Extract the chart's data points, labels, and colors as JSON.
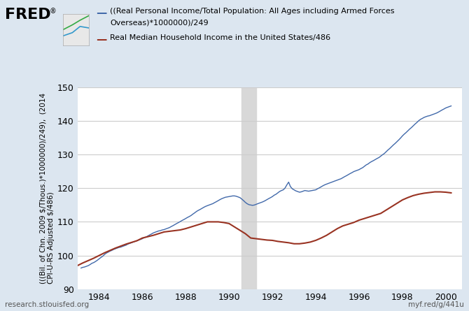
{
  "background_color": "#dce6f0",
  "plot_background": "#ffffff",
  "shaded_region": [
    1990.583,
    1991.25
  ],
  "shaded_color": "#d8d8d8",
  "ylim": [
    90,
    150
  ],
  "xlim": [
    1983.0,
    2000.75
  ],
  "yticks": [
    90,
    100,
    110,
    120,
    130,
    140,
    150
  ],
  "xticks": [
    1984,
    1986,
    1988,
    1990,
    1992,
    1994,
    1996,
    1998,
    2000
  ],
  "ylabel": "(((Bil. of Chn. 2009 $/Thous.)*1000000)/249),  (2014\nCPI-U-RS Adjusted $/486)",
  "blue_label": "((Real Personal Income/Total Population: All Ages including Armed Forces\nOverseas)*1000000)/249",
  "red_label": "Real Median Household Income in the United States/486",
  "fred_text": "FRED®",
  "bottom_left": "research.stlouisfed.org",
  "bottom_right": "myf.red/g/441u",
  "blue_color": "#4169aa",
  "red_color": "#993322",
  "blue_data": [
    [
      1983.17,
      96.3
    ],
    [
      1983.25,
      96.5
    ],
    [
      1983.33,
      96.6
    ],
    [
      1983.42,
      96.8
    ],
    [
      1983.5,
      97.0
    ],
    [
      1983.58,
      97.3
    ],
    [
      1983.67,
      97.7
    ],
    [
      1983.75,
      97.9
    ],
    [
      1983.83,
      98.2
    ],
    [
      1983.92,
      98.6
    ],
    [
      1984.0,
      99.0
    ],
    [
      1984.08,
      99.4
    ],
    [
      1984.17,
      99.8
    ],
    [
      1984.25,
      100.3
    ],
    [
      1984.33,
      100.7
    ],
    [
      1984.42,
      101.0
    ],
    [
      1984.5,
      101.3
    ],
    [
      1984.58,
      101.5
    ],
    [
      1984.67,
      101.8
    ],
    [
      1984.75,
      102.0
    ],
    [
      1984.83,
      102.2
    ],
    [
      1984.92,
      102.4
    ],
    [
      1985.0,
      102.5
    ],
    [
      1985.08,
      102.7
    ],
    [
      1985.17,
      102.9
    ],
    [
      1985.25,
      103.1
    ],
    [
      1985.33,
      103.4
    ],
    [
      1985.42,
      103.6
    ],
    [
      1985.5,
      103.8
    ],
    [
      1985.58,
      104.0
    ],
    [
      1985.67,
      104.2
    ],
    [
      1985.75,
      104.4
    ],
    [
      1985.83,
      104.6
    ],
    [
      1985.92,
      104.8
    ],
    [
      1986.0,
      105.0
    ],
    [
      1986.08,
      105.3
    ],
    [
      1986.17,
      105.5
    ],
    [
      1986.25,
      105.8
    ],
    [
      1986.33,
      106.1
    ],
    [
      1986.42,
      106.4
    ],
    [
      1986.5,
      106.7
    ],
    [
      1986.58,
      106.9
    ],
    [
      1986.67,
      107.1
    ],
    [
      1986.75,
      107.3
    ],
    [
      1986.83,
      107.4
    ],
    [
      1986.92,
      107.6
    ],
    [
      1987.0,
      107.7
    ],
    [
      1987.08,
      107.9
    ],
    [
      1987.17,
      108.1
    ],
    [
      1987.25,
      108.3
    ],
    [
      1987.33,
      108.6
    ],
    [
      1987.42,
      108.9
    ],
    [
      1987.5,
      109.2
    ],
    [
      1987.58,
      109.5
    ],
    [
      1987.67,
      109.8
    ],
    [
      1987.75,
      110.1
    ],
    [
      1987.83,
      110.4
    ],
    [
      1987.92,
      110.7
    ],
    [
      1988.0,
      111.0
    ],
    [
      1988.08,
      111.3
    ],
    [
      1988.17,
      111.6
    ],
    [
      1988.25,
      111.9
    ],
    [
      1988.33,
      112.3
    ],
    [
      1988.42,
      112.7
    ],
    [
      1988.5,
      113.1
    ],
    [
      1988.58,
      113.4
    ],
    [
      1988.67,
      113.7
    ],
    [
      1988.75,
      114.0
    ],
    [
      1988.83,
      114.3
    ],
    [
      1988.92,
      114.6
    ],
    [
      1989.0,
      114.8
    ],
    [
      1989.08,
      115.0
    ],
    [
      1989.17,
      115.2
    ],
    [
      1989.25,
      115.4
    ],
    [
      1989.33,
      115.7
    ],
    [
      1989.42,
      116.0
    ],
    [
      1989.5,
      116.3
    ],
    [
      1989.58,
      116.6
    ],
    [
      1989.67,
      116.9
    ],
    [
      1989.75,
      117.1
    ],
    [
      1989.83,
      117.3
    ],
    [
      1989.92,
      117.4
    ],
    [
      1990.0,
      117.5
    ],
    [
      1990.08,
      117.6
    ],
    [
      1990.17,
      117.7
    ],
    [
      1990.25,
      117.7
    ],
    [
      1990.33,
      117.6
    ],
    [
      1990.42,
      117.4
    ],
    [
      1990.5,
      117.2
    ],
    [
      1990.58,
      116.8
    ],
    [
      1990.67,
      116.3
    ],
    [
      1990.75,
      115.8
    ],
    [
      1990.83,
      115.4
    ],
    [
      1990.92,
      115.1
    ],
    [
      1991.0,
      115.0
    ],
    [
      1991.08,
      114.9
    ],
    [
      1991.17,
      115.0
    ],
    [
      1991.25,
      115.2
    ],
    [
      1991.33,
      115.4
    ],
    [
      1991.42,
      115.6
    ],
    [
      1991.5,
      115.8
    ],
    [
      1991.58,
      116.0
    ],
    [
      1991.67,
      116.3
    ],
    [
      1991.75,
      116.6
    ],
    [
      1991.83,
      116.9
    ],
    [
      1991.92,
      117.2
    ],
    [
      1992.0,
      117.5
    ],
    [
      1992.08,
      117.9
    ],
    [
      1992.17,
      118.2
    ],
    [
      1992.25,
      118.6
    ],
    [
      1992.33,
      119.0
    ],
    [
      1992.42,
      119.3
    ],
    [
      1992.5,
      119.5
    ],
    [
      1992.58,
      120.0
    ],
    [
      1992.67,
      121.0
    ],
    [
      1992.75,
      121.8
    ],
    [
      1992.83,
      120.5
    ],
    [
      1992.92,
      119.8
    ],
    [
      1993.0,
      119.5
    ],
    [
      1993.08,
      119.2
    ],
    [
      1993.17,
      119.0
    ],
    [
      1993.25,
      118.8
    ],
    [
      1993.33,
      118.9
    ],
    [
      1993.42,
      119.1
    ],
    [
      1993.5,
      119.3
    ],
    [
      1993.58,
      119.2
    ],
    [
      1993.67,
      119.1
    ],
    [
      1993.75,
      119.2
    ],
    [
      1993.83,
      119.3
    ],
    [
      1993.92,
      119.4
    ],
    [
      1994.0,
      119.5
    ],
    [
      1994.08,
      119.8
    ],
    [
      1994.17,
      120.1
    ],
    [
      1994.25,
      120.4
    ],
    [
      1994.33,
      120.7
    ],
    [
      1994.42,
      121.0
    ],
    [
      1994.5,
      121.2
    ],
    [
      1994.58,
      121.4
    ],
    [
      1994.67,
      121.6
    ],
    [
      1994.75,
      121.8
    ],
    [
      1994.83,
      122.0
    ],
    [
      1994.92,
      122.2
    ],
    [
      1995.0,
      122.4
    ],
    [
      1995.08,
      122.6
    ],
    [
      1995.17,
      122.8
    ],
    [
      1995.25,
      123.1
    ],
    [
      1995.33,
      123.4
    ],
    [
      1995.42,
      123.7
    ],
    [
      1995.5,
      124.0
    ],
    [
      1995.58,
      124.3
    ],
    [
      1995.67,
      124.6
    ],
    [
      1995.75,
      124.9
    ],
    [
      1995.83,
      125.1
    ],
    [
      1995.92,
      125.3
    ],
    [
      1996.0,
      125.5
    ],
    [
      1996.08,
      125.8
    ],
    [
      1996.17,
      126.1
    ],
    [
      1996.25,
      126.5
    ],
    [
      1996.33,
      126.9
    ],
    [
      1996.42,
      127.2
    ],
    [
      1996.5,
      127.6
    ],
    [
      1996.58,
      127.9
    ],
    [
      1996.67,
      128.2
    ],
    [
      1996.75,
      128.5
    ],
    [
      1996.83,
      128.8
    ],
    [
      1996.92,
      129.1
    ],
    [
      1997.0,
      129.5
    ],
    [
      1997.08,
      129.9
    ],
    [
      1997.17,
      130.3
    ],
    [
      1997.25,
      130.8
    ],
    [
      1997.33,
      131.3
    ],
    [
      1997.42,
      131.8
    ],
    [
      1997.5,
      132.3
    ],
    [
      1997.58,
      132.8
    ],
    [
      1997.67,
      133.3
    ],
    [
      1997.75,
      133.8
    ],
    [
      1997.83,
      134.3
    ],
    [
      1997.92,
      134.9
    ],
    [
      1998.0,
      135.5
    ],
    [
      1998.08,
      136.0
    ],
    [
      1998.17,
      136.5
    ],
    [
      1998.25,
      137.0
    ],
    [
      1998.33,
      137.5
    ],
    [
      1998.42,
      138.0
    ],
    [
      1998.5,
      138.5
    ],
    [
      1998.58,
      139.0
    ],
    [
      1998.67,
      139.5
    ],
    [
      1998.75,
      140.0
    ],
    [
      1998.83,
      140.4
    ],
    [
      1998.92,
      140.7
    ],
    [
      1999.0,
      141.0
    ],
    [
      1999.08,
      141.2
    ],
    [
      1999.17,
      141.4
    ],
    [
      1999.25,
      141.5
    ],
    [
      1999.33,
      141.7
    ],
    [
      1999.42,
      141.9
    ],
    [
      1999.5,
      142.1
    ],
    [
      1999.58,
      142.3
    ],
    [
      1999.67,
      142.6
    ],
    [
      1999.75,
      142.9
    ],
    [
      1999.83,
      143.2
    ],
    [
      1999.92,
      143.5
    ],
    [
      2000.0,
      143.8
    ],
    [
      2000.08,
      144.0
    ],
    [
      2000.17,
      144.2
    ],
    [
      2000.25,
      144.4
    ]
  ],
  "red_data": [
    [
      1983.0,
      97.0
    ],
    [
      1984.0,
      100.0
    ],
    [
      1985.0,
      102.8
    ],
    [
      1986.0,
      105.2
    ],
    [
      1987.0,
      107.0
    ],
    [
      1988.0,
      108.0
    ],
    [
      1989.0,
      110.0
    ],
    [
      1990.0,
      109.5
    ],
    [
      1991.0,
      105.2
    ],
    [
      1992.0,
      104.5
    ],
    [
      1993.0,
      103.5
    ],
    [
      1994.0,
      104.5
    ],
    [
      1995.0,
      108.0
    ],
    [
      1996.0,
      110.5
    ],
    [
      1997.0,
      112.5
    ],
    [
      1998.0,
      116.5
    ],
    [
      1999.0,
      118.5
    ],
    [
      2000.0,
      118.8
    ]
  ],
  "red_data_smooth": [
    [
      1983.0,
      97.0
    ],
    [
      1983.25,
      97.8
    ],
    [
      1983.5,
      98.5
    ],
    [
      1983.75,
      99.2
    ],
    [
      1984.0,
      100.0
    ],
    [
      1984.25,
      100.8
    ],
    [
      1984.5,
      101.5
    ],
    [
      1984.75,
      102.2
    ],
    [
      1985.0,
      102.8
    ],
    [
      1985.25,
      103.4
    ],
    [
      1985.5,
      103.9
    ],
    [
      1985.75,
      104.4
    ],
    [
      1986.0,
      105.2
    ],
    [
      1986.25,
      105.6
    ],
    [
      1986.5,
      106.0
    ],
    [
      1986.75,
      106.5
    ],
    [
      1987.0,
      107.0
    ],
    [
      1987.25,
      107.2
    ],
    [
      1987.5,
      107.4
    ],
    [
      1987.75,
      107.6
    ],
    [
      1988.0,
      108.0
    ],
    [
      1988.25,
      108.5
    ],
    [
      1988.5,
      109.0
    ],
    [
      1988.75,
      109.5
    ],
    [
      1989.0,
      110.0
    ],
    [
      1989.25,
      110.0
    ],
    [
      1989.5,
      110.0
    ],
    [
      1989.75,
      109.8
    ],
    [
      1990.0,
      109.5
    ],
    [
      1990.25,
      108.5
    ],
    [
      1990.5,
      107.5
    ],
    [
      1990.75,
      106.5
    ],
    [
      1991.0,
      105.2
    ],
    [
      1991.25,
      105.0
    ],
    [
      1991.5,
      104.8
    ],
    [
      1991.75,
      104.6
    ],
    [
      1992.0,
      104.5
    ],
    [
      1992.25,
      104.2
    ],
    [
      1992.5,
      104.0
    ],
    [
      1992.75,
      103.8
    ],
    [
      1993.0,
      103.5
    ],
    [
      1993.25,
      103.5
    ],
    [
      1993.5,
      103.7
    ],
    [
      1993.75,
      104.0
    ],
    [
      1994.0,
      104.5
    ],
    [
      1994.25,
      105.2
    ],
    [
      1994.5,
      106.0
    ],
    [
      1994.75,
      107.0
    ],
    [
      1995.0,
      108.0
    ],
    [
      1995.25,
      108.8
    ],
    [
      1995.5,
      109.3
    ],
    [
      1995.75,
      109.8
    ],
    [
      1996.0,
      110.5
    ],
    [
      1996.25,
      111.0
    ],
    [
      1996.5,
      111.5
    ],
    [
      1996.75,
      112.0
    ],
    [
      1997.0,
      112.5
    ],
    [
      1997.25,
      113.5
    ],
    [
      1997.5,
      114.5
    ],
    [
      1997.75,
      115.5
    ],
    [
      1998.0,
      116.5
    ],
    [
      1998.25,
      117.2
    ],
    [
      1998.5,
      117.8
    ],
    [
      1998.75,
      118.2
    ],
    [
      1999.0,
      118.5
    ],
    [
      1999.25,
      118.7
    ],
    [
      1999.5,
      118.9
    ],
    [
      1999.75,
      118.9
    ],
    [
      2000.0,
      118.8
    ],
    [
      2000.25,
      118.6
    ]
  ]
}
